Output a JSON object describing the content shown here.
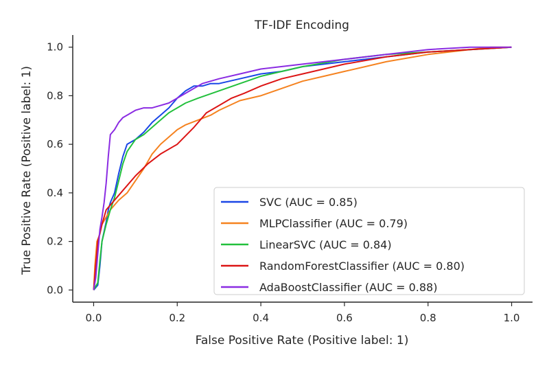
{
  "chart_data": {
    "type": "line",
    "title": "TF-IDF Encoding",
    "xlabel": "False Positive Rate (Positive label: 1)",
    "ylabel": "True Positive Rate (Positive label: 1)",
    "xlim": [
      -0.05,
      1.05
    ],
    "ylim": [
      -0.05,
      1.05
    ],
    "xticks": [
      0.0,
      0.2,
      0.4,
      0.6,
      0.8,
      1.0
    ],
    "yticks": [
      0.0,
      0.2,
      0.4,
      0.6,
      0.8,
      1.0
    ],
    "tick_labels_x": [
      "0.0",
      "0.2",
      "0.4",
      "0.6",
      "0.8",
      "1.0"
    ],
    "tick_labels_y": [
      "0.0",
      "0.2",
      "0.4",
      "0.6",
      "0.8",
      "1.0"
    ],
    "grid": false,
    "legend_position": "lower-right",
    "series": [
      {
        "name": "SVC (AUC = 0.85)",
        "color": "#1a46e6",
        "x": [
          0.0,
          0.01,
          0.015,
          0.02,
          0.03,
          0.035,
          0.04,
          0.05,
          0.06,
          0.07,
          0.08,
          0.1,
          0.12,
          0.14,
          0.16,
          0.18,
          0.2,
          0.22,
          0.24,
          0.26,
          0.28,
          0.3,
          0.35,
          0.4,
          0.45,
          0.5,
          0.6,
          0.7,
          0.8,
          0.9,
          1.0
        ],
        "y": [
          0.0,
          0.02,
          0.1,
          0.2,
          0.28,
          0.33,
          0.36,
          0.4,
          0.48,
          0.55,
          0.6,
          0.62,
          0.65,
          0.69,
          0.72,
          0.75,
          0.79,
          0.82,
          0.84,
          0.84,
          0.85,
          0.85,
          0.87,
          0.89,
          0.9,
          0.92,
          0.94,
          0.96,
          0.98,
          0.99,
          1.0
        ]
      },
      {
        "name": "MLPClassifier (AUC = 0.79)",
        "color": "#f5821f",
        "x": [
          0.0,
          0.003,
          0.008,
          0.015,
          0.02,
          0.03,
          0.04,
          0.05,
          0.06,
          0.08,
          0.1,
          0.12,
          0.14,
          0.16,
          0.18,
          0.2,
          0.22,
          0.25,
          0.28,
          0.3,
          0.35,
          0.4,
          0.45,
          0.5,
          0.55,
          0.6,
          0.65,
          0.7,
          0.8,
          0.9,
          0.95,
          1.0
        ],
        "y": [
          0.0,
          0.1,
          0.2,
          0.23,
          0.27,
          0.3,
          0.33,
          0.35,
          0.37,
          0.4,
          0.45,
          0.5,
          0.56,
          0.6,
          0.63,
          0.66,
          0.68,
          0.7,
          0.72,
          0.74,
          0.78,
          0.8,
          0.83,
          0.86,
          0.88,
          0.9,
          0.92,
          0.94,
          0.97,
          0.99,
          1.0,
          1.0
        ]
      },
      {
        "name": "LinearSVC (AUC = 0.84)",
        "color": "#22c03c",
        "x": [
          0.0,
          0.01,
          0.015,
          0.02,
          0.03,
          0.04,
          0.05,
          0.06,
          0.07,
          0.08,
          0.1,
          0.12,
          0.14,
          0.16,
          0.18,
          0.2,
          0.22,
          0.25,
          0.3,
          0.35,
          0.4,
          0.45,
          0.5,
          0.6,
          0.7,
          0.8,
          0.9,
          1.0
        ],
        "y": [
          0.0,
          0.03,
          0.12,
          0.2,
          0.27,
          0.33,
          0.38,
          0.45,
          0.52,
          0.57,
          0.62,
          0.64,
          0.67,
          0.7,
          0.73,
          0.75,
          0.77,
          0.79,
          0.82,
          0.85,
          0.88,
          0.9,
          0.92,
          0.95,
          0.97,
          0.98,
          0.99,
          1.0
        ]
      },
      {
        "name": "RandomForestClassifier (AUC = 0.80)",
        "color": "#dc1414",
        "x": [
          0.0,
          0.005,
          0.01,
          0.02,
          0.03,
          0.05,
          0.07,
          0.1,
          0.13,
          0.16,
          0.2,
          0.24,
          0.27,
          0.3,
          0.33,
          0.36,
          0.4,
          0.45,
          0.5,
          0.55,
          0.6,
          0.7,
          0.8,
          0.9,
          1.0
        ],
        "y": [
          0.0,
          0.1,
          0.2,
          0.27,
          0.33,
          0.37,
          0.41,
          0.47,
          0.52,
          0.56,
          0.6,
          0.67,
          0.73,
          0.76,
          0.79,
          0.81,
          0.84,
          0.87,
          0.89,
          0.91,
          0.93,
          0.96,
          0.98,
          0.99,
          1.0
        ]
      },
      {
        "name": "AdaBoostClassifier (AUC = 0.88)",
        "color": "#8a2be2",
        "x": [
          0.0,
          0.005,
          0.01,
          0.015,
          0.02,
          0.025,
          0.03,
          0.035,
          0.04,
          0.05,
          0.06,
          0.07,
          0.08,
          0.1,
          0.12,
          0.14,
          0.16,
          0.18,
          0.2,
          0.23,
          0.26,
          0.3,
          0.35,
          0.4,
          0.5,
          0.6,
          0.7,
          0.8,
          0.9,
          0.95,
          1.0
        ],
        "y": [
          0.0,
          0.05,
          0.15,
          0.25,
          0.3,
          0.36,
          0.44,
          0.55,
          0.64,
          0.66,
          0.69,
          0.71,
          0.72,
          0.74,
          0.75,
          0.75,
          0.76,
          0.77,
          0.79,
          0.82,
          0.85,
          0.87,
          0.89,
          0.91,
          0.93,
          0.95,
          0.97,
          0.99,
          1.0,
          1.0,
          1.0
        ]
      }
    ]
  }
}
